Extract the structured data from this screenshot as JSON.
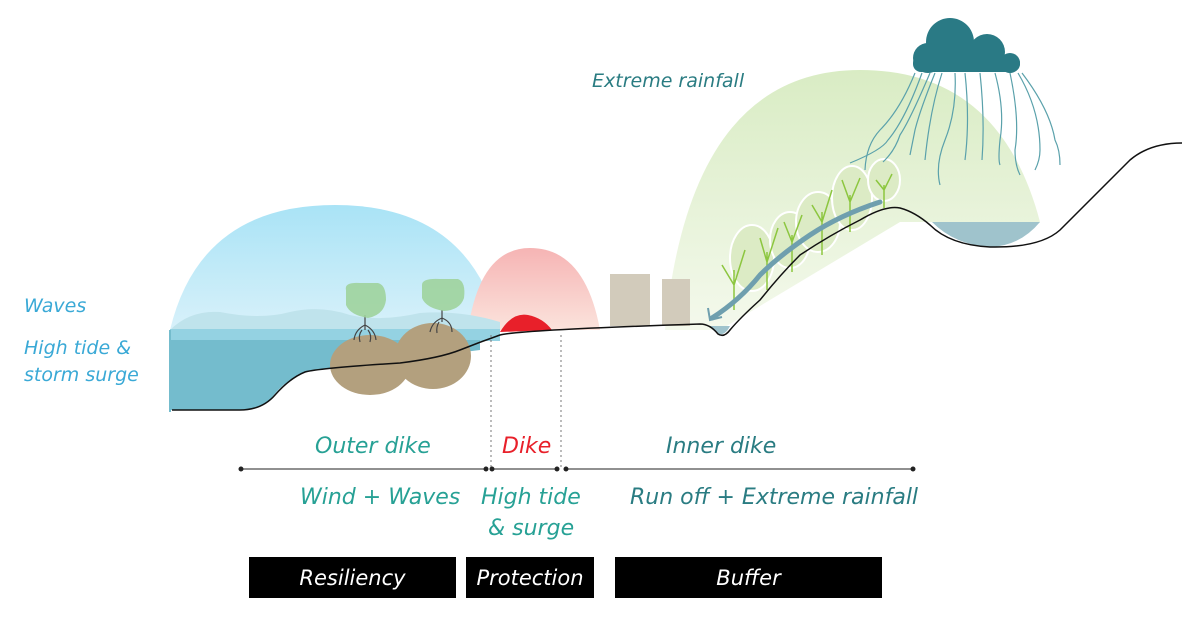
{
  "labels": {
    "waves": "Waves",
    "high_tide_line1": "High tide &",
    "high_tide_line2": "storm surge",
    "extreme_rainfall": "Extreme rainfall"
  },
  "zones": [
    {
      "name": "Outer dike",
      "cause": "Wind + Waves",
      "strategy": "Resiliency"
    },
    {
      "name": "Dike",
      "cause_line1": "High tide",
      "cause_line2": "& surge",
      "strategy": "Protection"
    },
    {
      "name": "Inner dike",
      "cause": "Run off + Extreme rainfall",
      "strategy": "Buffer"
    }
  ],
  "colors": {
    "sea_text": "#3aa9d6",
    "outer_text": "#27a195",
    "dike_red": "#e8202a",
    "inner_text": "#2a7c82",
    "cloud": "#2a7a85"
  }
}
